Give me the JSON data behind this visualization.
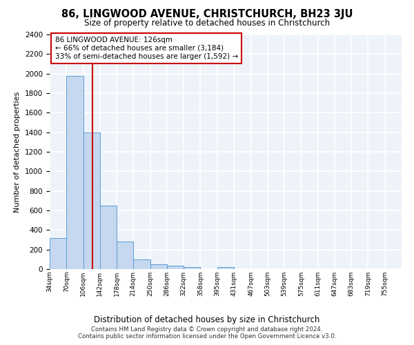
{
  "title1": "86, LINGWOOD AVENUE, CHRISTCHURCH, BH23 3JU",
  "title2": "Size of property relative to detached houses in Christchurch",
  "xlabel": "Distribution of detached houses by size in Christchurch",
  "ylabel": "Number of detached properties",
  "bin_edges": [
    34,
    70,
    106,
    142,
    178,
    214,
    250,
    286,
    322,
    358,
    395,
    431,
    467,
    503,
    539,
    575,
    611,
    647,
    683,
    719,
    755,
    791
  ],
  "bin_labels": [
    "34sqm",
    "70sqm",
    "106sqm",
    "142sqm",
    "178sqm",
    "214sqm",
    "250sqm",
    "286sqm",
    "322sqm",
    "358sqm",
    "395sqm",
    "431sqm",
    "467sqm",
    "503sqm",
    "539sqm",
    "575sqm",
    "611sqm",
    "647sqm",
    "683sqm",
    "719sqm",
    "755sqm"
  ],
  "bar_values": [
    320,
    1980,
    1400,
    650,
    280,
    100,
    50,
    35,
    20,
    0,
    20,
    0,
    0,
    0,
    0,
    0,
    0,
    0,
    0,
    0,
    0
  ],
  "bar_color": "#c5d8ef",
  "bar_edge_color": "#5b9bd5",
  "property_sqm": 126,
  "vline_color": "#cc0000",
  "annotation_text": "86 LINGWOOD AVENUE: 126sqm\n← 66% of detached houses are smaller (3,184)\n33% of semi-detached houses are larger (1,592) →",
  "annotation_box_color": "#ffffff",
  "annotation_box_edge": "#cc0000",
  "ylim": [
    0,
    2400
  ],
  "yticks": [
    0,
    200,
    400,
    600,
    800,
    1000,
    1200,
    1400,
    1600,
    1800,
    2000,
    2200,
    2400
  ],
  "footer1": "Contains HM Land Registry data © Crown copyright and database right 2024.",
  "footer2": "Contains public sector information licensed under the Open Government Licence v3.0.",
  "bg_color": "#eef3fa",
  "grid_color": "#ffffff"
}
